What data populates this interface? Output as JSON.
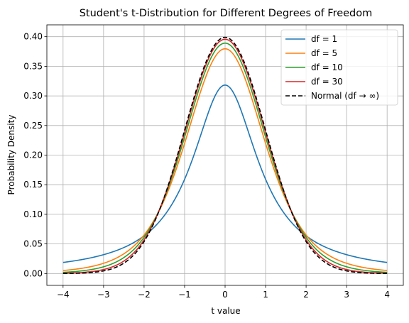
{
  "chart_data": {
    "type": "line",
    "title": "Student's t-Distribution for Different Degrees of Freedom",
    "xlabel": "t value",
    "ylabel": "Probability Density",
    "xlim": [
      -4.4,
      4.4
    ],
    "ylim": [
      -0.02,
      0.42
    ],
    "xticks": [
      -4,
      -3,
      -2,
      -1,
      0,
      1,
      2,
      3,
      4
    ],
    "yticks": [
      0.0,
      0.05,
      0.1,
      0.15,
      0.2,
      0.25,
      0.3,
      0.35,
      0.4
    ],
    "grid": true,
    "legend_position": "top-right",
    "x_range": [
      -4,
      4
    ],
    "series": [
      {
        "name": "df = 1",
        "df": 1,
        "color": "#1f77b4",
        "dash": "solid"
      },
      {
        "name": "df = 5",
        "df": 5,
        "color": "#ff7f0e",
        "dash": "solid"
      },
      {
        "name": "df = 10",
        "df": 10,
        "color": "#2ca02c",
        "dash": "solid"
      },
      {
        "name": "df = 30",
        "df": 30,
        "color": "#d62728",
        "dash": "solid"
      },
      {
        "name": "Normal (df → ∞)",
        "df": null,
        "color": "#000000",
        "dash": "dashed"
      }
    ]
  }
}
